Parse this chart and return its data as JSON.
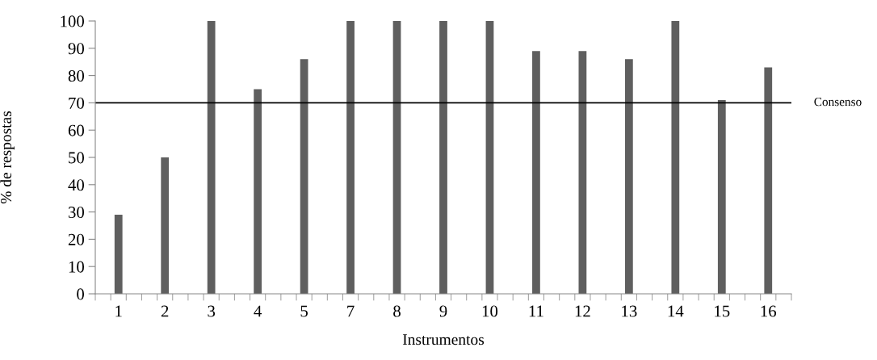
{
  "chart_data": {
    "type": "bar",
    "xlabel": "Instrumentos",
    "ylabel": "% de respostas",
    "categories": [
      "1",
      "2",
      "3",
      "4",
      "5",
      "7",
      "8",
      "9",
      "10",
      "11",
      "12",
      "13",
      "14",
      "15",
      "16"
    ],
    "values": [
      29,
      50,
      100,
      75,
      86,
      100,
      100,
      100,
      100,
      89,
      89,
      86,
      100,
      71,
      83
    ],
    "color": "#5f5f5f",
    "ylim": [
      0,
      100
    ],
    "yticks": [
      0,
      10,
      20,
      30,
      40,
      50,
      60,
      70,
      80,
      90,
      100
    ],
    "ref_lines": [
      {
        "axis": "y",
        "value": 70,
        "label": "Consenso",
        "color": "#000000"
      }
    ],
    "grid": false,
    "legend": false
  }
}
